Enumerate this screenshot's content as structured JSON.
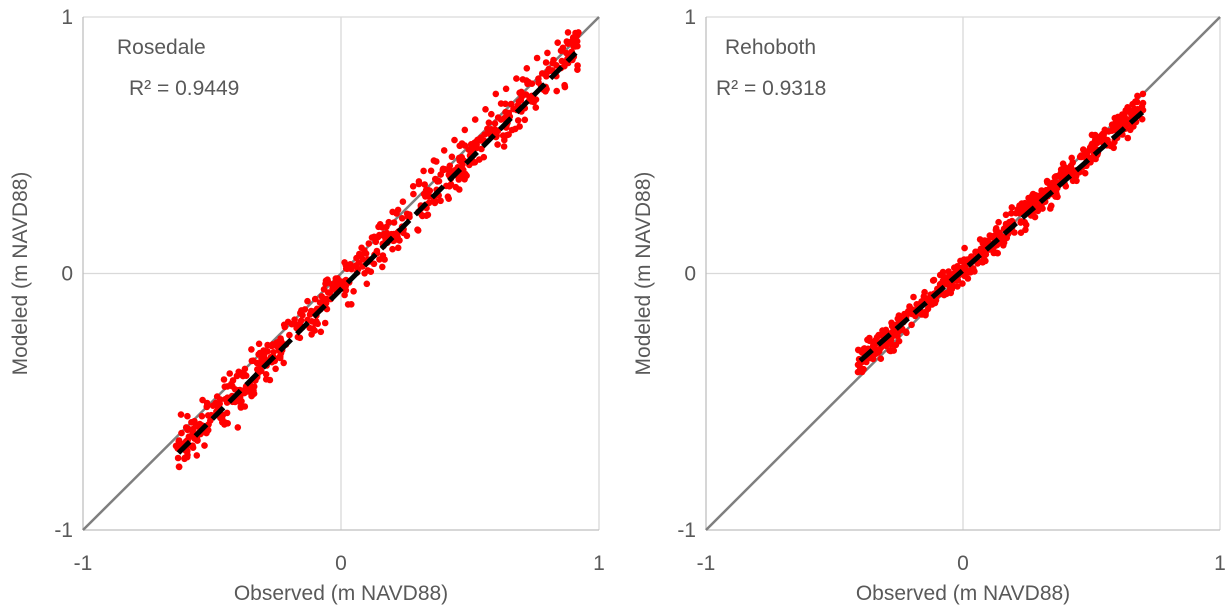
{
  "chart_data": [
    {
      "type": "scatter",
      "title": "Rosedale",
      "annotation": "R² = 0.9449",
      "xlabel": "Observed (m NAVD88)",
      "ylabel": "Modeled (m NAVD88)",
      "xlim": [
        -1,
        1
      ],
      "ylim": [
        -1,
        1
      ],
      "xticks": [
        "-1",
        "0",
        "1"
      ],
      "yticks": [
        "-1",
        "0",
        "1"
      ],
      "grid": true,
      "colors": {
        "points": "#ff0000",
        "trendline": "#000000",
        "one_to_one": "#7f7f7f",
        "grid": "#d9d9d9"
      },
      "one_to_one_line": {
        "x": [
          -1,
          1
        ],
        "y": [
          -1,
          1
        ]
      },
      "trendline": {
        "x": [
          -0.63,
          0.91
        ],
        "y": [
          -0.7,
          0.86
        ]
      },
      "cloud": {
        "x_range": [
          -0.64,
          0.92
        ],
        "slope": 1.01,
        "intercept": -0.05,
        "scatter": 0.06
      },
      "series": [
        {
          "points": [
            [
              -0.62,
              -0.55
            ],
            [
              -0.6,
              -0.6
            ],
            [
              -0.58,
              -0.58
            ],
            [
              -0.55,
              -0.62
            ],
            [
              -0.52,
              -0.52
            ],
            [
              -0.5,
              -0.56
            ],
            [
              -0.48,
              -0.48
            ],
            [
              -0.46,
              -0.58
            ],
            [
              -0.44,
              -0.44
            ],
            [
              -0.42,
              -0.5
            ],
            [
              -0.4,
              -0.6
            ],
            [
              -0.38,
              -0.4
            ],
            [
              -0.36,
              -0.46
            ],
            [
              -0.34,
              -0.34
            ],
            [
              -0.32,
              -0.38
            ],
            [
              -0.3,
              -0.3
            ],
            [
              -0.28,
              -0.34
            ],
            [
              -0.26,
              -0.28
            ],
            [
              -0.24,
              -0.3
            ],
            [
              -0.22,
              -0.2
            ],
            [
              -0.2,
              -0.24
            ],
            [
              -0.18,
              -0.18
            ],
            [
              -0.16,
              -0.22
            ],
            [
              -0.14,
              -0.14
            ],
            [
              -0.12,
              -0.16
            ],
            [
              -0.1,
              -0.1
            ],
            [
              -0.08,
              -0.14
            ],
            [
              -0.06,
              -0.04
            ],
            [
              -0.04,
              -0.1
            ],
            [
              -0.02,
              -0.02
            ],
            [
              0.0,
              -0.06
            ],
            [
              0.02,
              0.02
            ],
            [
              0.04,
              -0.12
            ],
            [
              0.06,
              0.06
            ],
            [
              0.08,
              0.1
            ],
            [
              0.1,
              -0.04
            ],
            [
              0.12,
              0.14
            ],
            [
              0.14,
              0.08
            ],
            [
              0.16,
              0.18
            ],
            [
              0.18,
              0.12
            ],
            [
              0.2,
              0.24
            ],
            [
              0.22,
              0.16
            ],
            [
              0.24,
              0.28
            ],
            [
              0.26,
              0.22
            ],
            [
              0.28,
              0.34
            ],
            [
              0.3,
              0.24
            ],
            [
              0.32,
              0.4
            ],
            [
              0.34,
              0.3
            ],
            [
              0.36,
              0.44
            ],
            [
              0.38,
              0.36
            ],
            [
              0.4,
              0.48
            ],
            [
              0.42,
              0.34
            ],
            [
              0.44,
              0.52
            ],
            [
              0.46,
              0.44
            ],
            [
              0.48,
              0.56
            ],
            [
              0.5,
              0.46
            ],
            [
              0.52,
              0.6
            ],
            [
              0.54,
              0.52
            ],
            [
              0.56,
              0.64
            ],
            [
              0.58,
              0.56
            ],
            [
              0.6,
              0.7
            ],
            [
              0.62,
              0.6
            ],
            [
              0.64,
              0.72
            ],
            [
              0.66,
              0.66
            ],
            [
              0.68,
              0.76
            ],
            [
              0.7,
              0.7
            ],
            [
              0.72,
              0.8
            ],
            [
              0.74,
              0.74
            ],
            [
              0.76,
              0.84
            ],
            [
              0.78,
              0.78
            ],
            [
              0.8,
              0.86
            ],
            [
              0.82,
              0.82
            ],
            [
              0.84,
              0.9
            ],
            [
              0.86,
              0.88
            ],
            [
              0.88,
              0.94
            ],
            [
              0.9,
              0.92
            ],
            [
              0.92,
              0.94
            ]
          ]
        }
      ]
    },
    {
      "type": "scatter",
      "title": "Rehoboth",
      "annotation": "R² = 0.9318",
      "xlabel": "Observed (m NAVD88)",
      "ylabel": "Modeled (m NAVD88)",
      "xlim": [
        -1,
        1
      ],
      "ylim": [
        -1,
        1
      ],
      "xticks": [
        "-1",
        "0",
        "1"
      ],
      "yticks": [
        "-1",
        "0",
        "1"
      ],
      "grid": true,
      "colors": {
        "points": "#ff0000",
        "trendline": "#000000",
        "one_to_one": "#7f7f7f",
        "grid": "#d9d9d9"
      },
      "one_to_one_line": {
        "x": [
          -1,
          1
        ],
        "y": [
          -1,
          1
        ]
      },
      "trendline": {
        "x": [
          -0.4,
          0.7
        ],
        "y": [
          -0.34,
          0.63
        ]
      },
      "cloud": {
        "x_range": [
          -0.41,
          0.71
        ],
        "slope": 0.91,
        "intercept": 0.02,
        "scatter": 0.04
      },
      "series": [
        {
          "points": [
            [
              -0.4,
              -0.34
            ],
            [
              -0.38,
              -0.3
            ],
            [
              -0.36,
              -0.33
            ],
            [
              -0.34,
              -0.26
            ],
            [
              -0.32,
              -0.29
            ],
            [
              -0.3,
              -0.22
            ],
            [
              -0.28,
              -0.26
            ],
            [
              -0.26,
              -0.2
            ],
            [
              -0.24,
              -0.22
            ],
            [
              -0.22,
              -0.16
            ],
            [
              -0.2,
              -0.2
            ],
            [
              -0.18,
              -0.12
            ],
            [
              -0.16,
              -0.16
            ],
            [
              -0.14,
              -0.1
            ],
            [
              -0.12,
              -0.12
            ],
            [
              -0.1,
              -0.06
            ],
            [
              -0.08,
              -0.08
            ],
            [
              -0.06,
              -0.02
            ],
            [
              -0.04,
              -0.05
            ],
            [
              -0.02,
              0.0
            ],
            [
              0.0,
              0.0
            ],
            [
              0.02,
              0.04
            ],
            [
              0.04,
              0.02
            ],
            [
              0.06,
              0.08
            ],
            [
              0.08,
              0.06
            ],
            [
              0.1,
              0.12
            ],
            [
              0.12,
              0.08
            ],
            [
              0.14,
              0.16
            ],
            [
              0.16,
              0.12
            ],
            [
              0.18,
              0.2
            ],
            [
              0.2,
              0.16
            ],
            [
              0.22,
              0.24
            ],
            [
              0.24,
              0.2
            ],
            [
              0.26,
              0.26
            ],
            [
              0.28,
              0.22
            ],
            [
              0.3,
              0.3
            ],
            [
              0.32,
              0.28
            ],
            [
              0.34,
              0.34
            ],
            [
              0.36,
              0.3
            ],
            [
              0.38,
              0.38
            ],
            [
              0.4,
              0.34
            ],
            [
              0.42,
              0.42
            ],
            [
              0.44,
              0.38
            ],
            [
              0.46,
              0.46
            ],
            [
              0.48,
              0.42
            ],
            [
              0.5,
              0.5
            ],
            [
              0.52,
              0.46
            ],
            [
              0.54,
              0.54
            ],
            [
              0.56,
              0.5
            ],
            [
              0.58,
              0.58
            ],
            [
              0.6,
              0.56
            ],
            [
              0.62,
              0.62
            ],
            [
              0.64,
              0.6
            ],
            [
              0.66,
              0.66
            ],
            [
              0.68,
              0.64
            ],
            [
              0.7,
              0.7
            ]
          ]
        }
      ]
    }
  ]
}
